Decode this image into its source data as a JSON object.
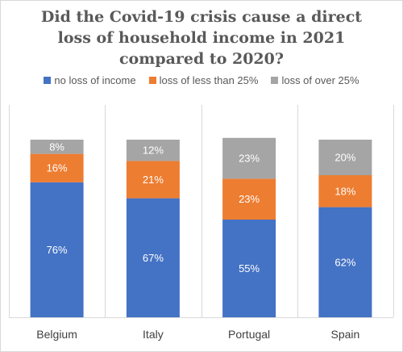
{
  "chart_data": {
    "type": "bar",
    "stacked": true,
    "percent_stacked": true,
    "title": "Did the Covid-19 crisis cause a direct loss of household income in 2021 compared to 2020?",
    "title_lines": [
      "Did the Covid-19 crisis cause a direct",
      "loss of household income in 2021",
      "compared to 2020?"
    ],
    "categories": [
      "Belgium",
      "Italy",
      "Portugal",
      "Spain"
    ],
    "series": [
      {
        "name": "no loss of income",
        "color": "#4472c4",
        "values": [
          76,
          67,
          55,
          62
        ],
        "labels": [
          "76%",
          "67%",
          "55%",
          "62%"
        ]
      },
      {
        "name": "loss of less than 25%",
        "color": "#ed7d31",
        "values": [
          16,
          21,
          23,
          18
        ],
        "labels": [
          "16%",
          "21%",
          "23%",
          "18%"
        ]
      },
      {
        "name": "loss of over 25%",
        "color": "#a5a5a5",
        "values": [
          8,
          12,
          23,
          20
        ],
        "labels": [
          "8%",
          "12%",
          "23%",
          "20%"
        ]
      }
    ],
    "ylim": [
      0,
      100
    ],
    "legend_position": "top",
    "grid": false
  }
}
